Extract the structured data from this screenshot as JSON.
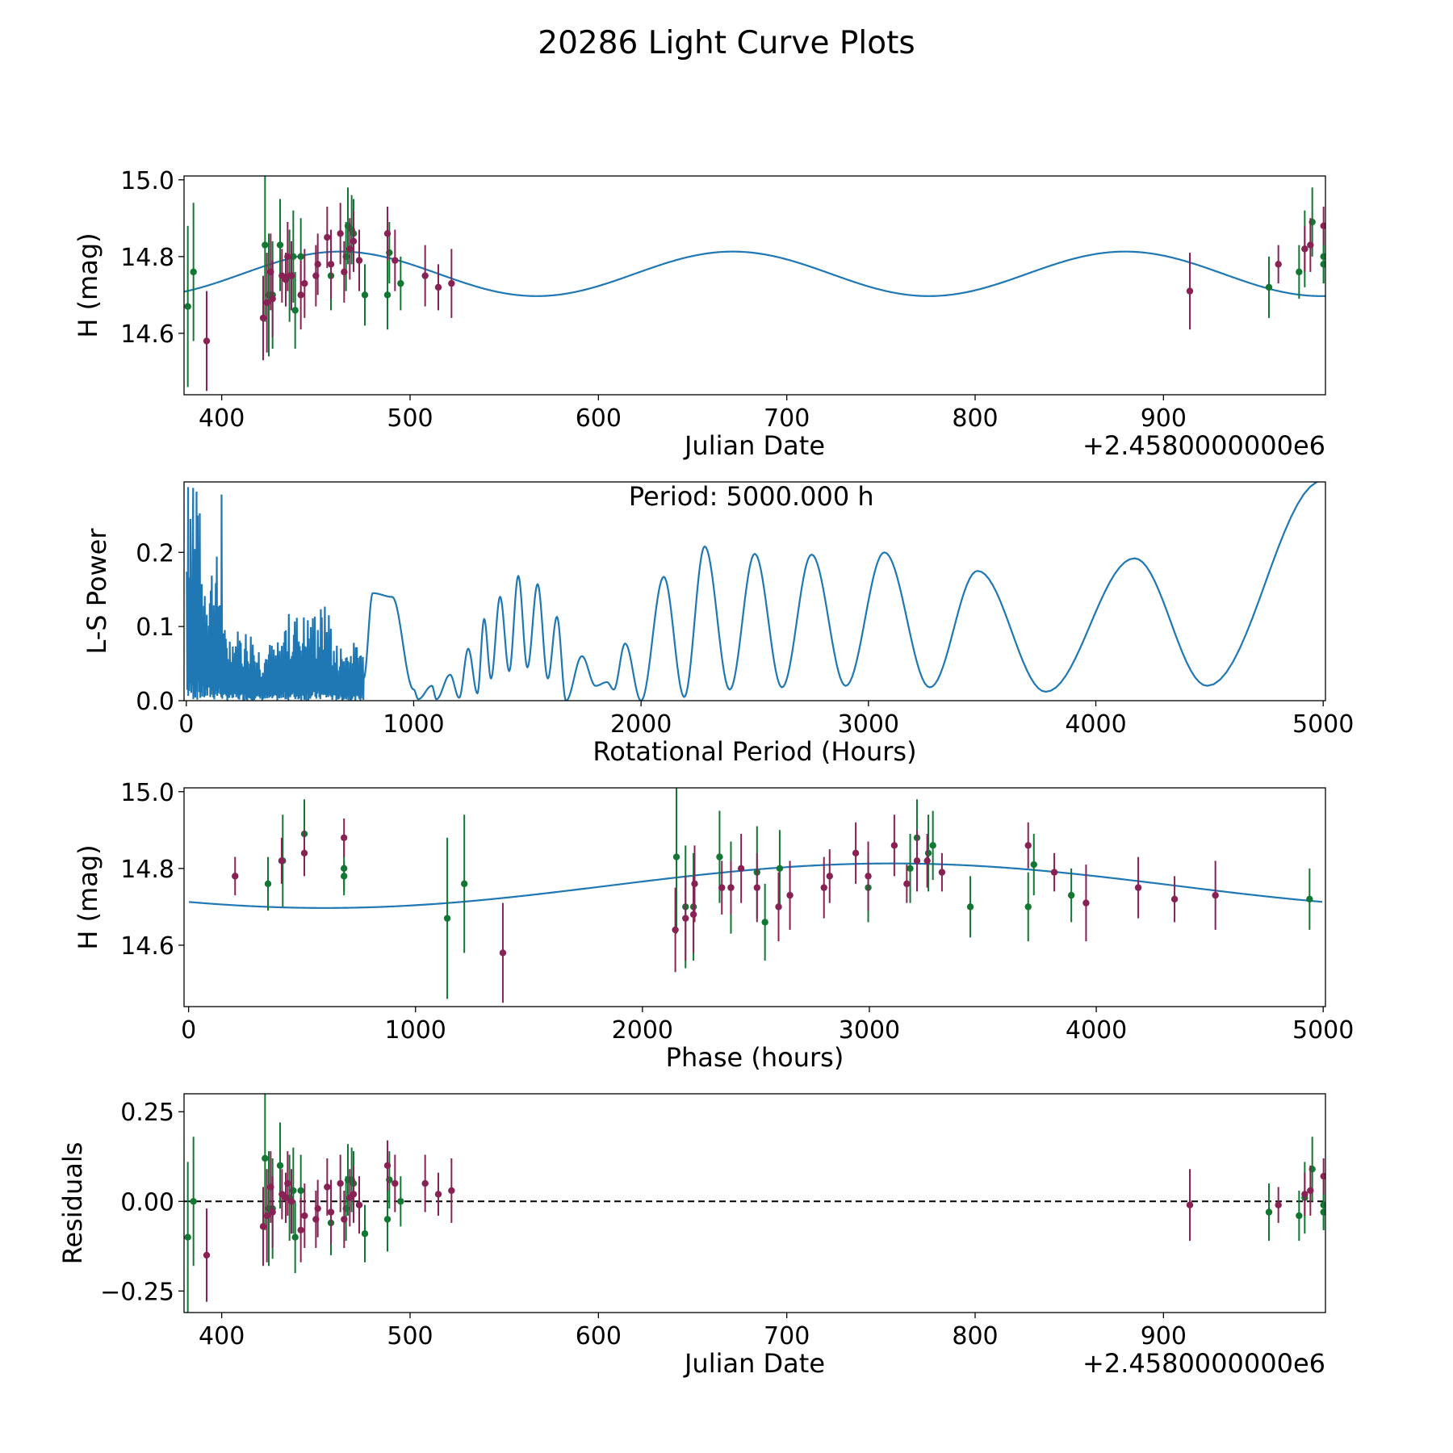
{
  "figure": {
    "title": "20286 Light Curve Plots"
  },
  "colors": {
    "model": "#1f77b4",
    "green": "#117733",
    "purple": "#882255"
  },
  "chart_data": [
    {
      "id": "lightcurve",
      "type": "scatter",
      "title": "",
      "xlabel": "Julian Date",
      "ylabel": "H (mag)",
      "offset_text": "+2.4580000000e6",
      "xlim": [
        380,
        986
      ],
      "ylim": [
        14.44,
        15.01
      ],
      "xticks": [
        400,
        500,
        600,
        700,
        800,
        900
      ],
      "yticks": [
        14.6,
        14.8,
        15.0
      ],
      "ytick_labels": [
        "14.6",
        "14.8",
        "15.0"
      ],
      "model": {
        "type": "sine",
        "mean": 14.755,
        "amplitude": 0.058,
        "period_days": 208.33,
        "peak_x": 463.0
      },
      "series": [
        {
          "name": "green",
          "points": [
            [
              382,
              14.67,
              0.21
            ],
            [
              385,
              14.76,
              0.18
            ],
            [
              423,
              14.83,
              0.2
            ],
            [
              425,
              14.7,
              0.16
            ],
            [
              427,
              14.7,
              0.14
            ],
            [
              431,
              14.83,
              0.12
            ],
            [
              436,
              14.75,
              0.12
            ],
            [
              438,
              14.8,
              0.12
            ],
            [
              439,
              14.66,
              0.1
            ],
            [
              442,
              14.8,
              0.1
            ],
            [
              458,
              14.75,
              0.09
            ],
            [
              466,
              14.8,
              0.09
            ],
            [
              467,
              14.88,
              0.1
            ],
            [
              469,
              14.87,
              0.09
            ],
            [
              470,
              14.86,
              0.09
            ],
            [
              476,
              14.7,
              0.08
            ],
            [
              488,
              14.7,
              0.09
            ],
            [
              489,
              14.81,
              0.08
            ],
            [
              495,
              14.73,
              0.07
            ],
            [
              956,
              14.72,
              0.08
            ],
            [
              972,
              14.76,
              0.07
            ],
            [
              975,
              14.82,
              0.1
            ],
            [
              979,
              14.89,
              0.09
            ],
            [
              985,
              14.8,
              0.07
            ],
            [
              985,
              14.78,
              0.05
            ]
          ]
        },
        {
          "name": "purple",
          "points": [
            [
              392,
              14.58,
              0.13
            ],
            [
              422,
              14.64,
              0.11
            ],
            [
              424,
              14.68,
              0.13
            ],
            [
              426,
              14.76,
              0.1
            ],
            [
              427,
              14.69,
              0.1
            ],
            [
              432,
              14.75,
              0.07
            ],
            [
              434,
              14.74,
              0.07
            ],
            [
              435,
              14.8,
              0.09
            ],
            [
              437,
              14.75,
              0.09
            ],
            [
              442,
              14.7,
              0.09
            ],
            [
              444,
              14.73,
              0.09
            ],
            [
              450,
              14.75,
              0.08
            ],
            [
              451,
              14.78,
              0.08
            ],
            [
              456,
              14.85,
              0.08
            ],
            [
              458,
              14.78,
              0.09
            ],
            [
              463,
              14.86,
              0.08
            ],
            [
              465,
              14.76,
              0.08
            ],
            [
              468,
              14.82,
              0.08
            ],
            [
              470,
              14.84,
              0.08
            ],
            [
              473,
              14.79,
              0.08
            ],
            [
              488,
              14.86,
              0.07
            ],
            [
              492,
              14.79,
              0.08
            ],
            [
              508,
              14.75,
              0.08
            ],
            [
              515,
              14.72,
              0.06
            ],
            [
              522,
              14.73,
              0.09
            ],
            [
              914,
              14.71,
              0.1
            ],
            [
              961,
              14.78,
              0.05
            ],
            [
              975,
              14.82,
              0.06
            ],
            [
              978,
              14.83,
              0.07
            ],
            [
              985,
              14.88,
              0.05
            ]
          ]
        }
      ]
    },
    {
      "id": "periodogram",
      "type": "line",
      "title": "",
      "annotation": "Period: 5000.000 h",
      "xlabel": "Rotational Period (Hours)",
      "ylabel": "L-S Power",
      "xlim": [
        -10,
        5010
      ],
      "ylim": [
        0,
        0.295
      ],
      "xticks": [
        0,
        1000,
        2000,
        3000,
        4000,
        5000
      ],
      "yticks": [
        0.0,
        0.1,
        0.2
      ],
      "ytick_labels": [
        "0.0",
        "0.1",
        "0.2"
      ],
      "peaks": [
        [
          820,
          0.145
        ],
        [
          905,
          0.14
        ],
        [
          1000,
          0.015
        ],
        [
          1080,
          0.02
        ],
        [
          1160,
          0.035
        ],
        [
          1240,
          0.07
        ],
        [
          1310,
          0.11
        ],
        [
          1380,
          0.14
        ],
        [
          1460,
          0.168
        ],
        [
          1545,
          0.157
        ],
        [
          1630,
          0.113
        ],
        [
          1740,
          0.06
        ],
        [
          1850,
          0.025
        ],
        [
          1930,
          0.077
        ],
        [
          2100,
          0.167
        ],
        [
          2280,
          0.208
        ],
        [
          2500,
          0.198
        ],
        [
          2750,
          0.197
        ],
        [
          3070,
          0.2
        ],
        [
          3480,
          0.175
        ],
        [
          4170,
          0.192
        ]
      ],
      "troughs": [
        [
          1020,
          0.002
        ],
        [
          1100,
          0.002
        ],
        [
          1200,
          0.004
        ],
        [
          1280,
          0.01
        ],
        [
          1340,
          0.03
        ],
        [
          1420,
          0.04
        ],
        [
          1500,
          0.045
        ],
        [
          1590,
          0.03
        ],
        [
          1670,
          0.0
        ],
        [
          1800,
          0.02
        ],
        [
          1880,
          0.015
        ],
        [
          2000,
          0.0
        ],
        [
          2190,
          0.005
        ],
        [
          2390,
          0.015
        ],
        [
          2620,
          0.018
        ],
        [
          2900,
          0.02
        ],
        [
          3270,
          0.018
        ],
        [
          3780,
          0.012
        ],
        [
          4490,
          0.02
        ]
      ],
      "end_point": [
        5000,
        0.297
      ]
    },
    {
      "id": "phased",
      "type": "scatter",
      "title": "",
      "xlabel": "Phase (hours)",
      "ylabel": "H (mag)",
      "xlim": [
        -20,
        5010
      ],
      "ylim": [
        14.44,
        15.01
      ],
      "xticks": [
        0,
        1000,
        2000,
        3000,
        4000,
        5000
      ],
      "yticks": [
        14.6,
        14.8,
        15.0
      ],
      "ytick_labels": [
        "14.6",
        "14.8",
        "15.0"
      ],
      "model": {
        "type": "sine",
        "mean": 14.755,
        "amplitude": 0.058,
        "period_hours": 5000,
        "peak_x": 3100
      },
      "series": [
        {
          "name": "green",
          "points": [
            [
              350,
              14.76,
              0.07
            ],
            [
              415,
              14.82,
              0.12
            ],
            [
              510,
              14.89,
              0.09
            ],
            [
              685,
              14.8,
              0.07
            ],
            [
              685,
              14.78,
              0.04
            ],
            [
              1140,
              14.67,
              0.21
            ],
            [
              1215,
              14.76,
              0.18
            ],
            [
              2150,
              14.83,
              0.2
            ],
            [
              2190,
              14.7,
              0.16
            ],
            [
              2225,
              14.7,
              0.14
            ],
            [
              2340,
              14.83,
              0.12
            ],
            [
              2390,
              14.75,
              0.12
            ],
            [
              2505,
              14.79,
              0.12
            ],
            [
              2540,
              14.66,
              0.1
            ],
            [
              2605,
              14.8,
              0.1
            ],
            [
              2995,
              14.75,
              0.09
            ],
            [
              3180,
              14.8,
              0.09
            ],
            [
              3210,
              14.88,
              0.1
            ],
            [
              3260,
              14.84,
              0.1
            ],
            [
              3280,
              14.86,
              0.09
            ],
            [
              3445,
              14.7,
              0.08
            ],
            [
              3700,
              14.7,
              0.09
            ],
            [
              3725,
              14.81,
              0.08
            ],
            [
              3890,
              14.73,
              0.07
            ],
            [
              4940,
              14.72,
              0.08
            ]
          ]
        },
        {
          "name": "purple",
          "points": [
            [
              205,
              14.78,
              0.05
            ],
            [
              410,
              14.82,
              0.06
            ],
            [
              510,
              14.84,
              0.06
            ],
            [
              685,
              14.88,
              0.05
            ],
            [
              1385,
              14.58,
              0.13
            ],
            [
              2145,
              14.64,
              0.11
            ],
            [
              2190,
              14.67,
              0.11
            ],
            [
              2225,
              14.68,
              0.1
            ],
            [
              2230,
              14.76,
              0.1
            ],
            [
              2350,
              14.75,
              0.07
            ],
            [
              2390,
              14.75,
              0.07
            ],
            [
              2435,
              14.8,
              0.09
            ],
            [
              2505,
              14.75,
              0.09
            ],
            [
              2600,
              14.7,
              0.09
            ],
            [
              2650,
              14.73,
              0.09
            ],
            [
              2800,
              14.75,
              0.08
            ],
            [
              2825,
              14.78,
              0.07
            ],
            [
              2940,
              14.84,
              0.08
            ],
            [
              2995,
              14.78,
              0.09
            ],
            [
              3110,
              14.86,
              0.08
            ],
            [
              3165,
              14.76,
              0.05
            ],
            [
              3210,
              14.82,
              0.08
            ],
            [
              3255,
              14.82,
              0.07
            ],
            [
              3320,
              14.79,
              0.05
            ],
            [
              3700,
              14.86,
              0.06
            ],
            [
              3815,
              14.79,
              0.05
            ],
            [
              3955,
              14.71,
              0.1
            ],
            [
              4185,
              14.75,
              0.08
            ],
            [
              4345,
              14.72,
              0.06
            ],
            [
              4525,
              14.73,
              0.09
            ]
          ]
        }
      ]
    },
    {
      "id": "residuals",
      "type": "scatter",
      "title": "",
      "xlabel": "Julian Date",
      "ylabel": "Residuals",
      "offset_text": "+2.4580000000e6",
      "xlim": [
        380,
        986
      ],
      "ylim": [
        -0.31,
        0.3
      ],
      "xticks": [
        400,
        500,
        600,
        700,
        800,
        900
      ],
      "yticks": [
        -0.25,
        0.0,
        0.25
      ],
      "ytick_labels": [
        "−0.25",
        "0.00",
        "0.25"
      ],
      "reference_line": 0.0,
      "series": [
        {
          "name": "green",
          "points": [
            [
              382,
              -0.1,
              0.21
            ],
            [
              385,
              0.0,
              0.18
            ],
            [
              423,
              0.12,
              0.2
            ],
            [
              425,
              -0.02,
              0.16
            ],
            [
              427,
              -0.02,
              0.14
            ],
            [
              431,
              0.1,
              0.12
            ],
            [
              436,
              0.01,
              0.12
            ],
            [
              438,
              0.03,
              0.12
            ],
            [
              439,
              -0.1,
              0.1
            ],
            [
              442,
              0.03,
              0.1
            ],
            [
              458,
              -0.06,
              0.09
            ],
            [
              466,
              -0.02,
              0.09
            ],
            [
              467,
              0.06,
              0.1
            ],
            [
              469,
              0.06,
              0.09
            ],
            [
              470,
              0.05,
              0.09
            ],
            [
              476,
              -0.09,
              0.08
            ],
            [
              488,
              -0.05,
              0.09
            ],
            [
              489,
              0.06,
              0.08
            ],
            [
              495,
              0.0,
              0.07
            ],
            [
              956,
              -0.03,
              0.08
            ],
            [
              972,
              -0.04,
              0.07
            ],
            [
              975,
              0.01,
              0.1
            ],
            [
              979,
              0.09,
              0.09
            ],
            [
              985,
              -0.01,
              0.07
            ],
            [
              985,
              -0.03,
              0.05
            ]
          ]
        },
        {
          "name": "purple",
          "points": [
            [
              392,
              -0.15,
              0.13
            ],
            [
              422,
              -0.07,
              0.11
            ],
            [
              424,
              -0.04,
              0.13
            ],
            [
              426,
              0.04,
              0.1
            ],
            [
              427,
              -0.03,
              0.1
            ],
            [
              432,
              0.02,
              0.07
            ],
            [
              434,
              0.01,
              0.07
            ],
            [
              435,
              0.05,
              0.09
            ],
            [
              437,
              0.0,
              0.09
            ],
            [
              442,
              -0.08,
              0.09
            ],
            [
              444,
              -0.04,
              0.09
            ],
            [
              450,
              -0.05,
              0.08
            ],
            [
              451,
              -0.02,
              0.08
            ],
            [
              456,
              0.04,
              0.08
            ],
            [
              458,
              -0.03,
              0.09
            ],
            [
              463,
              0.05,
              0.08
            ],
            [
              465,
              -0.05,
              0.08
            ],
            [
              468,
              0.01,
              0.08
            ],
            [
              470,
              0.02,
              0.08
            ],
            [
              473,
              -0.01,
              0.08
            ],
            [
              488,
              0.1,
              0.07
            ],
            [
              492,
              0.05,
              0.08
            ],
            [
              508,
              0.05,
              0.08
            ],
            [
              515,
              0.02,
              0.06
            ],
            [
              522,
              0.03,
              0.09
            ],
            [
              914,
              -0.01,
              0.1
            ],
            [
              961,
              -0.01,
              0.05
            ],
            [
              975,
              0.02,
              0.06
            ],
            [
              978,
              0.03,
              0.07
            ],
            [
              985,
              0.07,
              0.05
            ]
          ]
        }
      ]
    }
  ]
}
